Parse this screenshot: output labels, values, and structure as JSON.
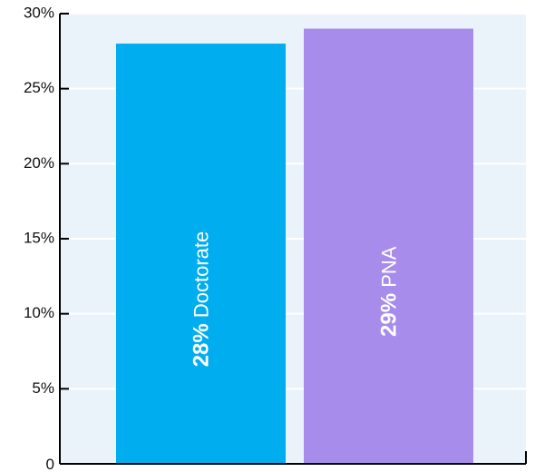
{
  "chart_data": {
    "type": "bar",
    "title": "",
    "xlabel": "",
    "ylabel": "",
    "categories": [
      "Doctorate",
      "PNA"
    ],
    "values": [
      28,
      29
    ],
    "value_labels": [
      "28%",
      "29%"
    ],
    "colors": [
      "#00adef",
      "#a88cec"
    ],
    "ylim": [
      0,
      30
    ],
    "yticks": [
      0,
      5,
      10,
      15,
      20,
      25,
      30
    ],
    "ytick_labels": [
      "0",
      "5%",
      "10%",
      "15%",
      "20%",
      "25%",
      "30%"
    ],
    "grid": true,
    "legend": "none",
    "plot_background": "#eaf3fa",
    "gridline_color": "#ffffff"
  }
}
